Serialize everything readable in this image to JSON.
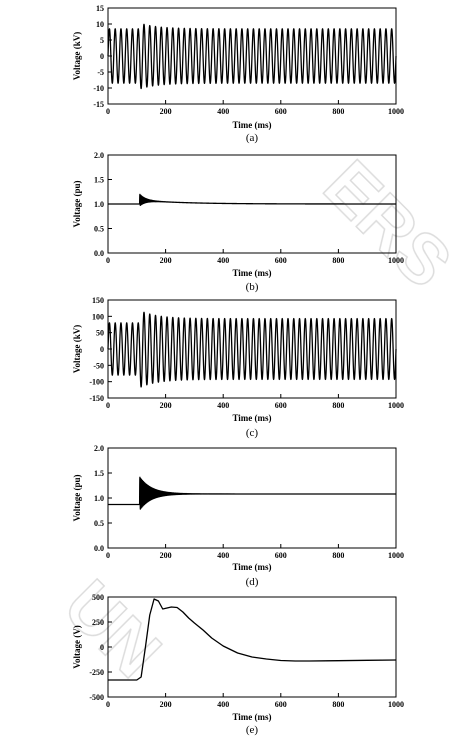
{
  "watermark": {
    "left": "UN",
    "right": "ERS"
  },
  "chart_data": [
    {
      "id": "a",
      "type": "line",
      "caption": "(a)",
      "xlabel": "Time (ms)",
      "ylabel": "Voltage (kV)",
      "xlim": [
        0,
        1000
      ],
      "ylim": [
        -15,
        15
      ],
      "xticks": [
        0,
        200,
        400,
        600,
        800,
        1000
      ],
      "yticks": [
        -15,
        -10,
        -5,
        0,
        5,
        10,
        15
      ],
      "grid": false,
      "signal": {
        "kind": "sine",
        "freq_hz": 50,
        "amp_before": 8.5,
        "amp_after": 8.5,
        "t_event": 110,
        "peak": 10.3,
        "decay_ms": 60,
        "final_offset": 0
      }
    },
    {
      "id": "b",
      "type": "line",
      "caption": "(b)",
      "xlabel": "Time (ms)",
      "ylabel": "Voltage (pu)",
      "xlim": [
        0,
        1000
      ],
      "ylim": [
        0,
        2
      ],
      "xticks": [
        0,
        200,
        400,
        600,
        800,
        1000
      ],
      "yticks": [
        "0.0",
        "0.5",
        "1.0",
        "1.5",
        "2.0"
      ],
      "grid": false,
      "signal": {
        "kind": "envelope",
        "base_before": 1.0,
        "t_event": 110,
        "overshoot": 0.2,
        "osc_ms": 40,
        "decay_ms": 150,
        "final": 1.0
      }
    },
    {
      "id": "c",
      "type": "line",
      "caption": "(c)",
      "xlabel": "Time (ms)",
      "ylabel": "Voltage (kV)",
      "xlim": [
        0,
        1000
      ],
      "ylim": [
        -150,
        150
      ],
      "xticks": [
        0,
        200,
        400,
        600,
        800,
        1000
      ],
      "yticks": [
        -150,
        -100,
        -50,
        0,
        50,
        100,
        150
      ],
      "grid": false,
      "signal": {
        "kind": "sine",
        "freq_hz": 50,
        "amp_before": 80,
        "amp_after": 93,
        "t_event": 110,
        "peak": 118,
        "decay_ms": 60,
        "final_offset": 0
      }
    },
    {
      "id": "d",
      "type": "line",
      "caption": "(d)",
      "xlabel": "Time (ms)",
      "ylabel": "Voltage (pu)",
      "xlim": [
        0,
        1000
      ],
      "ylim": [
        0,
        2
      ],
      "xticks": [
        0,
        200,
        400,
        600,
        800,
        1000
      ],
      "yticks": [
        "0.0",
        "0.5",
        "1.0",
        "1.5",
        "2.0"
      ],
      "grid": false,
      "signal": {
        "kind": "envelope",
        "base_before": 0.87,
        "t_event": 110,
        "overshoot": 0.55,
        "osc_ms": 80,
        "decay_ms": 120,
        "final": 1.08
      }
    },
    {
      "id": "e",
      "type": "line",
      "caption": "(e)",
      "xlabel": "Time (ms)",
      "ylabel": "Voltage (V)",
      "xlim": [
        0,
        1000
      ],
      "ylim": [
        -500,
        500
      ],
      "xticks": [
        0,
        200,
        400,
        600,
        800,
        1000
      ],
      "yticks": [
        -500,
        -250,
        0,
        250,
        500
      ],
      "grid": false,
      "x": [
        0,
        100,
        115,
        130,
        145,
        160,
        175,
        190,
        205,
        220,
        240,
        260,
        280,
        300,
        330,
        360,
        400,
        450,
        500,
        550,
        600,
        650,
        700,
        800,
        900,
        1000
      ],
      "y": [
        -330,
        -330,
        -300,
        0,
        320,
        480,
        460,
        380,
        390,
        400,
        395,
        350,
        290,
        240,
        170,
        90,
        10,
        -60,
        -100,
        -120,
        -135,
        -140,
        -140,
        -137,
        -133,
        -130
      ]
    }
  ]
}
